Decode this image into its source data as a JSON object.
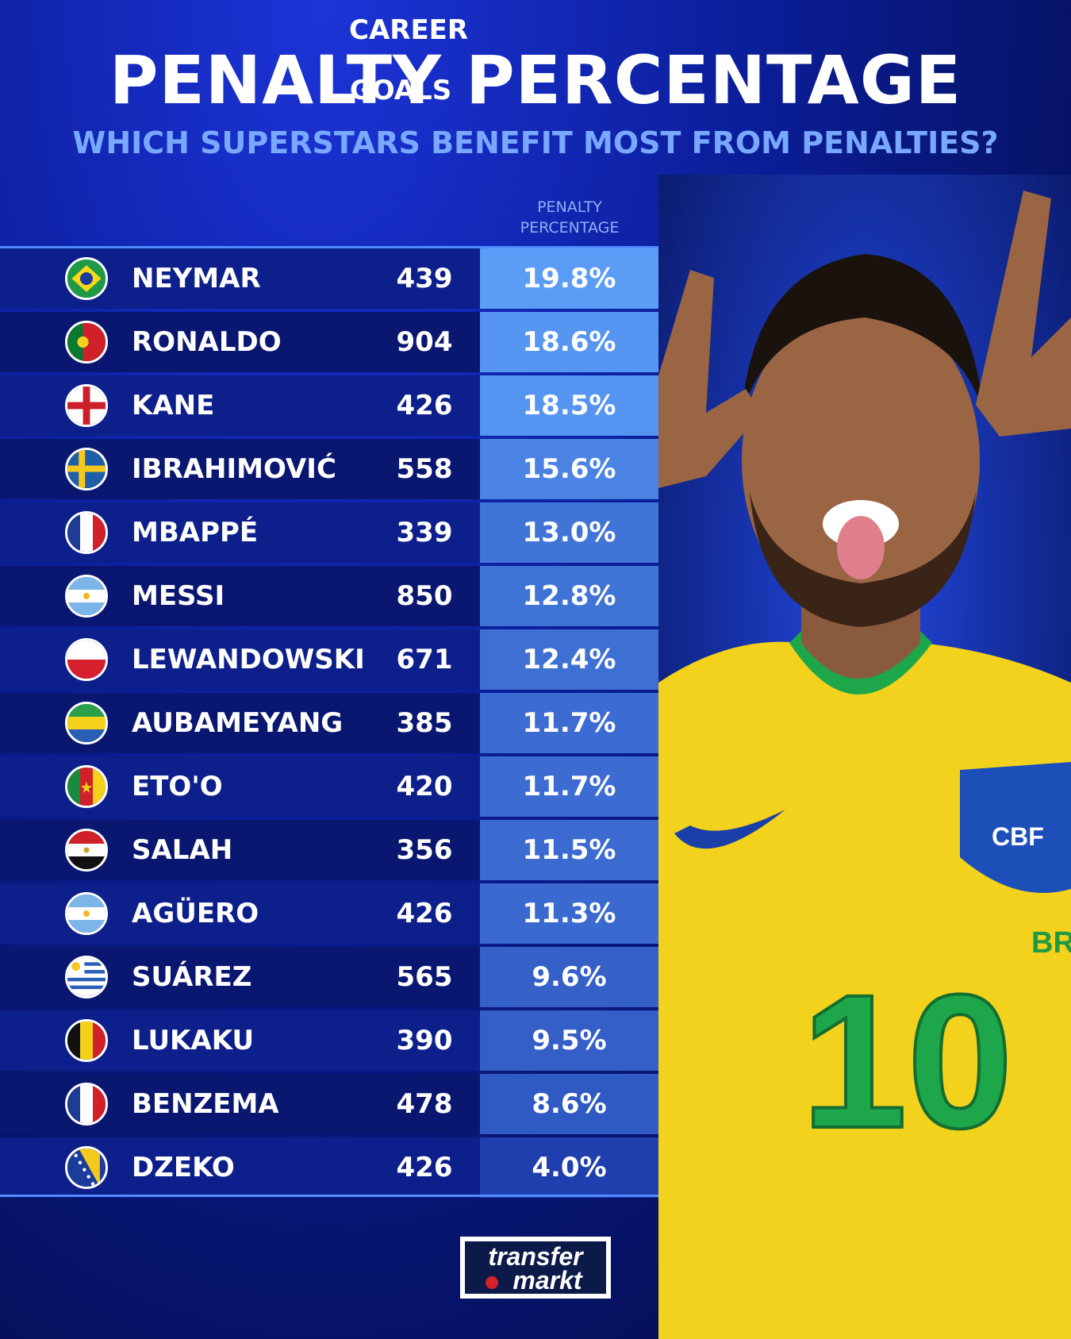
{
  "header": {
    "title": "PENALTY PERCENTAGE",
    "subtitle": "WHICH SUPERSTARS BENEFIT MOST FROM PENALTIES?"
  },
  "columns": {
    "goals_line1": "CAREER",
    "goals_line2": "GOALS",
    "pct_line1": "PENALTY",
    "pct_line2": "PERCENTAGE"
  },
  "rows": [
    {
      "name": "NEYMAR",
      "goals": "439",
      "pct": "19.8%",
      "flag": "brazil-flag-icon"
    },
    {
      "name": "RONALDO",
      "goals": "904",
      "pct": "18.6%",
      "flag": "portugal-flag-icon"
    },
    {
      "name": "KANE",
      "goals": "426",
      "pct": "18.5%",
      "flag": "england-flag-icon"
    },
    {
      "name": "IBRAHIMOVIĆ",
      "goals": "558",
      "pct": "15.6%",
      "flag": "sweden-flag-icon"
    },
    {
      "name": "MBAPPÉ",
      "goals": "339",
      "pct": "13.0%",
      "flag": "france-flag-icon"
    },
    {
      "name": "MESSI",
      "goals": "850",
      "pct": "12.8%",
      "flag": "argentina-flag-icon"
    },
    {
      "name": "LEWANDOWSKI",
      "goals": "671",
      "pct": "12.4%",
      "flag": "poland-flag-icon"
    },
    {
      "name": "AUBAMEYANG",
      "goals": "385",
      "pct": "11.7%",
      "flag": "gabon-flag-icon"
    },
    {
      "name": "ETO'O",
      "goals": "420",
      "pct": "11.7%",
      "flag": "cameroon-flag-icon"
    },
    {
      "name": "SALAH",
      "goals": "356",
      "pct": "11.5%",
      "flag": "egypt-flag-icon"
    },
    {
      "name": "AGÜERO",
      "goals": "426",
      "pct": "11.3%",
      "flag": "argentina-flag-icon"
    },
    {
      "name": "SUÁREZ",
      "goals": "565",
      "pct": "9.6%",
      "flag": "uruguay-flag-icon"
    },
    {
      "name": "LUKAKU",
      "goals": "390",
      "pct": "9.5%",
      "flag": "belgium-flag-icon"
    },
    {
      "name": "BENZEMA",
      "goals": "478",
      "pct": "8.6%",
      "flag": "france-flag-icon"
    },
    {
      "name": "DZEKO",
      "goals": "426",
      "pct": "4.0%",
      "flag": "bosnia-flag-icon"
    }
  ],
  "jersey": {
    "number": "10",
    "crest": "CBF",
    "text": "BR"
  },
  "logo": {
    "line1": "transfer",
    "line2": "markt"
  },
  "colors": {
    "accent": "#4f8cff",
    "subtitle": "#79a8ff",
    "pct_high": "#5a9cf6",
    "pct_low": "#1f3fae",
    "jersey": "#f2d21c",
    "jersey_green": "#1ea64a"
  }
}
